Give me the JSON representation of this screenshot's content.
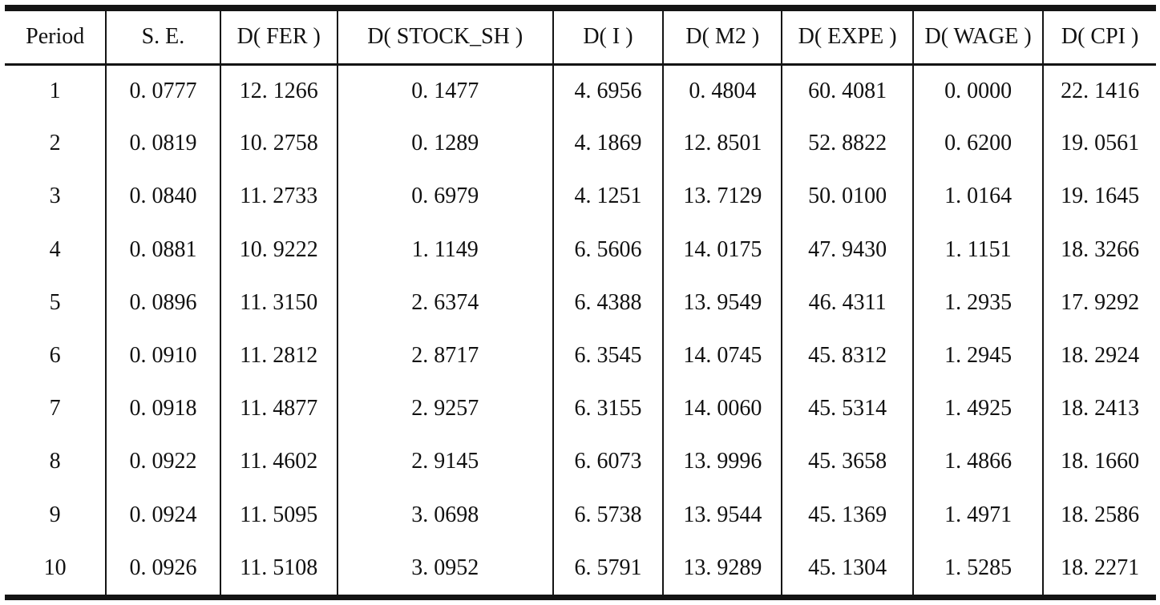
{
  "table": {
    "name": "variance-decomposition-table",
    "headers": [
      "Period",
      "S. E.",
      "D( FER )",
      "D( STOCK_SH )",
      "D( I )",
      "D( M2 )",
      "D( EXPE )",
      "D( WAGE )",
      "D( CPI )"
    ],
    "rows": [
      [
        "1",
        "0. 0777",
        "12. 1266",
        "0. 1477",
        "4. 6956",
        "0. 4804",
        "60. 4081",
        "0. 0000",
        "22. 1416"
      ],
      [
        "2",
        "0. 0819",
        "10. 2758",
        "0. 1289",
        "4. 1869",
        "12. 8501",
        "52. 8822",
        "0. 6200",
        "19. 0561"
      ],
      [
        "3",
        "0. 0840",
        "11. 2733",
        "0. 6979",
        "4. 1251",
        "13. 7129",
        "50. 0100",
        "1. 0164",
        "19. 1645"
      ],
      [
        "4",
        "0. 0881",
        "10. 9222",
        "1. 1149",
        "6. 5606",
        "14. 0175",
        "47. 9430",
        "1. 1151",
        "18. 3266"
      ],
      [
        "5",
        "0. 0896",
        "11. 3150",
        "2. 6374",
        "6. 4388",
        "13. 9549",
        "46. 4311",
        "1. 2935",
        "17. 9292"
      ],
      [
        "6",
        "0. 0910",
        "11. 2812",
        "2. 8717",
        "6. 3545",
        "14. 0745",
        "45. 8312",
        "1. 2945",
        "18. 2924"
      ],
      [
        "7",
        "0. 0918",
        "11. 4877",
        "2. 9257",
        "6. 3155",
        "14. 0060",
        "45. 5314",
        "1. 4925",
        "18. 2413"
      ],
      [
        "8",
        "0. 0922",
        "11. 4602",
        "2. 9145",
        "6. 6073",
        "13. 9996",
        "45. 3658",
        "1. 4866",
        "18. 1660"
      ],
      [
        "9",
        "0. 0924",
        "11. 5095",
        "3. 0698",
        "6. 5738",
        "13. 9544",
        "45. 1369",
        "1. 4971",
        "18. 2586"
      ],
      [
        "10",
        "0. 0926",
        "11. 5108",
        "3. 0952",
        "6. 5791",
        "13. 9289",
        "45. 1304",
        "1. 5285",
        "18. 2271"
      ]
    ],
    "colors": {
      "rule": "#141414",
      "text": "#111111",
      "background": "#ffffff"
    }
  }
}
